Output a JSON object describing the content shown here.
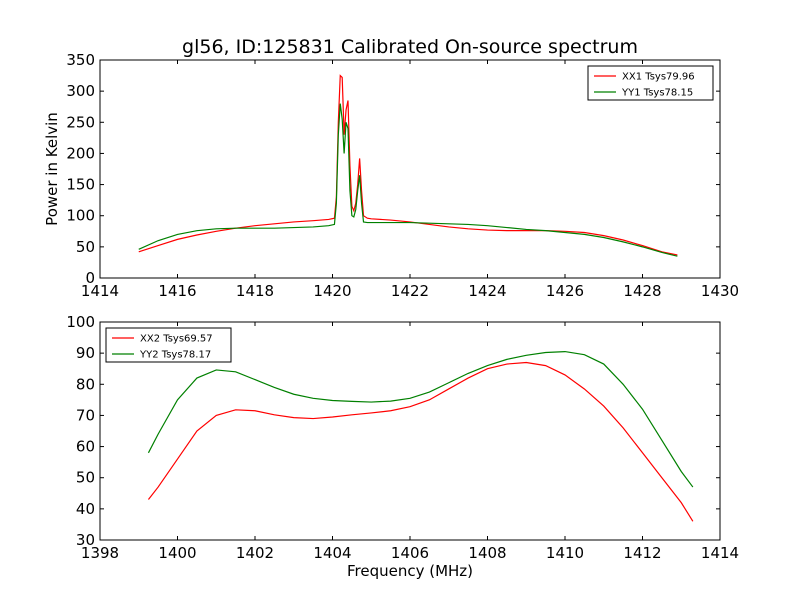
{
  "title": "gl56, ID:125831 Calibrated On-source spectrum",
  "colors": {
    "xx": "#ff0000",
    "yy": "#008000"
  },
  "chart_data": [
    {
      "type": "line",
      "xlabel": "",
      "ylabel": "Power in Kelvin",
      "xlim": [
        1414,
        1430
      ],
      "ylim": [
        0,
        350
      ],
      "xticks": [
        "1414",
        "1416",
        "1418",
        "1420",
        "1422",
        "1424",
        "1426",
        "1428",
        "1430"
      ],
      "yticks": [
        "0",
        "50",
        "100",
        "150",
        "200",
        "250",
        "300",
        "350"
      ],
      "legend_position": "top-right",
      "series": [
        {
          "name": "XX1 Tsys79.96",
          "color": "#ff0000",
          "x": [
            1415.0,
            1415.5,
            1416.0,
            1416.5,
            1417.0,
            1417.5,
            1418.0,
            1418.5,
            1419.0,
            1419.5,
            1419.9,
            1420.05,
            1420.1,
            1420.15,
            1420.2,
            1420.25,
            1420.3,
            1420.35,
            1420.4,
            1420.45,
            1420.5,
            1420.55,
            1420.6,
            1420.65,
            1420.7,
            1420.75,
            1420.8,
            1420.9,
            1421.0,
            1421.5,
            1422.0,
            1422.5,
            1423.0,
            1423.5,
            1424.0,
            1424.5,
            1425.0,
            1425.5,
            1426.0,
            1426.5,
            1427.0,
            1427.5,
            1428.0,
            1428.5,
            1428.9
          ],
          "y": [
            42,
            52,
            62,
            69,
            75,
            80,
            84,
            87,
            90,
            92,
            94,
            96,
            130,
            250,
            325,
            322,
            230,
            270,
            285,
            180,
            115,
            108,
            120,
            150,
            192,
            140,
            100,
            96,
            95,
            93,
            90,
            86,
            82,
            79,
            77,
            76,
            76,
            76,
            75,
            73,
            68,
            61,
            52,
            42,
            37
          ]
        },
        {
          "name": "YY1 Tsys78.15",
          "color": "#008000",
          "x": [
            1415.0,
            1415.5,
            1416.0,
            1416.5,
            1417.0,
            1417.5,
            1418.0,
            1418.5,
            1419.0,
            1419.5,
            1419.9,
            1420.05,
            1420.1,
            1420.15,
            1420.2,
            1420.25,
            1420.3,
            1420.35,
            1420.4,
            1420.45,
            1420.5,
            1420.55,
            1420.6,
            1420.65,
            1420.7,
            1420.75,
            1420.8,
            1420.9,
            1421.0,
            1421.5,
            1422.0,
            1422.5,
            1423.0,
            1423.5,
            1424.0,
            1424.5,
            1425.0,
            1425.5,
            1426.0,
            1426.5,
            1427.0,
            1427.5,
            1428.0,
            1428.5,
            1428.9
          ],
          "y": [
            46,
            60,
            70,
            76,
            79,
            80,
            80,
            80,
            81,
            82,
            84,
            86,
            120,
            230,
            280,
            255,
            200,
            250,
            240,
            140,
            100,
            98,
            110,
            140,
            165,
            120,
            90,
            89,
            89,
            89,
            89,
            88,
            87,
            86,
            84,
            81,
            78,
            76,
            73,
            70,
            65,
            58,
            50,
            41,
            35
          ]
        }
      ]
    },
    {
      "type": "line",
      "xlabel": "Frequency (MHz)",
      "ylabel": "",
      "xlim": [
        1398,
        1414
      ],
      "ylim": [
        30,
        100
      ],
      "xticks": [
        "1398",
        "1400",
        "1402",
        "1404",
        "1406",
        "1408",
        "1410",
        "1412",
        "1414"
      ],
      "yticks": [
        "30",
        "40",
        "50",
        "60",
        "70",
        "80",
        "90",
        "100"
      ],
      "legend_position": "top-left",
      "series": [
        {
          "name": "XX2 Tsys69.57",
          "color": "#ff0000",
          "x": [
            1399.25,
            1399.5,
            1400.0,
            1400.5,
            1401.0,
            1401.5,
            1402.0,
            1402.5,
            1403.0,
            1403.5,
            1404.0,
            1404.5,
            1405.0,
            1405.5,
            1406.0,
            1406.5,
            1407.0,
            1407.5,
            1408.0,
            1408.5,
            1409.0,
            1409.5,
            1410.0,
            1410.5,
            1411.0,
            1411.5,
            1412.0,
            1412.5,
            1413.0,
            1413.3
          ],
          "y": [
            43,
            47,
            56,
            65,
            70,
            71.8,
            71.5,
            70.2,
            69.3,
            69,
            69.5,
            70.2,
            70.8,
            71.5,
            72.8,
            75,
            78.5,
            82,
            85,
            86.5,
            87,
            86,
            83,
            78.5,
            73,
            66,
            58,
            50,
            42,
            36
          ]
        },
        {
          "name": "YY2 Tsys78.17",
          "color": "#008000",
          "x": [
            1399.25,
            1399.5,
            1400.0,
            1400.5,
            1401.0,
            1401.5,
            1402.0,
            1402.5,
            1403.0,
            1403.5,
            1404.0,
            1404.5,
            1405.0,
            1405.5,
            1406.0,
            1406.5,
            1407.0,
            1407.5,
            1408.0,
            1408.5,
            1409.0,
            1409.5,
            1410.0,
            1410.5,
            1411.0,
            1411.5,
            1412.0,
            1412.5,
            1413.0,
            1413.3
          ],
          "y": [
            58,
            64,
            75,
            82,
            84.6,
            84,
            81.5,
            79,
            76.8,
            75.5,
            74.8,
            74.5,
            74.3,
            74.6,
            75.5,
            77.5,
            80.5,
            83.5,
            86,
            88,
            89.3,
            90.2,
            90.5,
            89.5,
            86.5,
            80,
            72,
            62,
            52,
            47
          ]
        }
      ]
    }
  ]
}
